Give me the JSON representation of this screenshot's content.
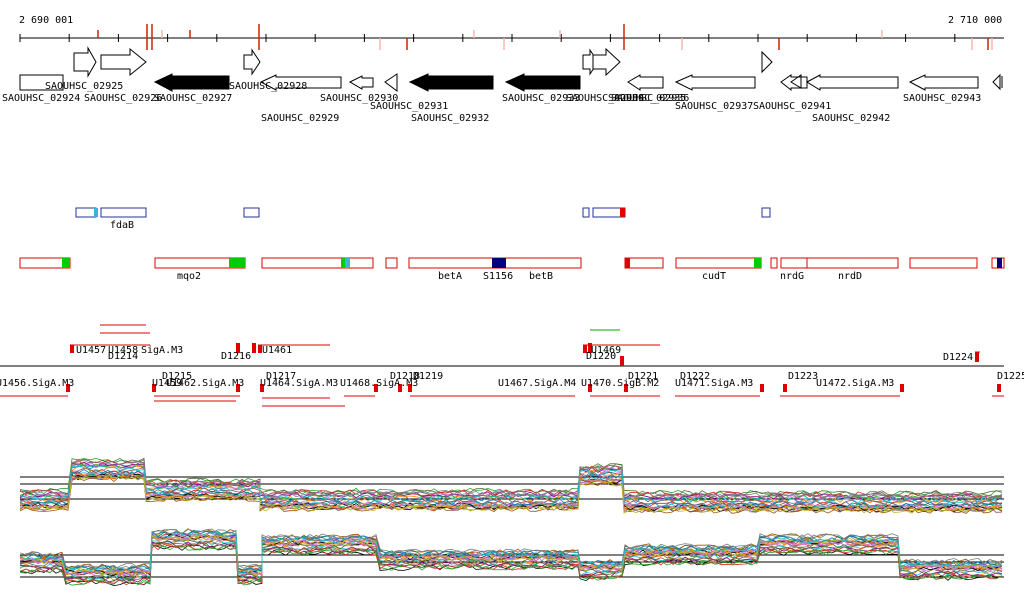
{
  "ruler": {
    "start_label": "2 690 001",
    "end_label": "2 710 000"
  },
  "colors": {
    "feature_red": "#e00000",
    "feature_blue": "#2030a0",
    "feature_navy": "#00007a",
    "accent_green": "#00cc00",
    "accent_cyan": "#40b0e0",
    "gene_filled": "#000000",
    "gene_outline": "#000000",
    "mark_red": "#cc2200",
    "mark_pink": "#ffb0b0"
  },
  "genes": [
    {
      "id": "SAOUHSC_02924",
      "dir": "r",
      "filled": false
    },
    {
      "id": "SAOUHSC_02925",
      "dir": "r",
      "filled": false
    },
    {
      "id": "SAOUHSC_02926",
      "dir": "r",
      "filled": false
    },
    {
      "id": "SAOUHSC_02927",
      "dir": "l",
      "filled": true
    },
    {
      "id": "SAOUHSC_02928",
      "dir": "r",
      "filled": false
    },
    {
      "id": "SAOUHSC_02929",
      "dir": "l",
      "filled": false
    },
    {
      "id": "SAOUHSC_02930",
      "dir": "l",
      "filled": false
    },
    {
      "id": "SAOUHSC_02931",
      "dir": "l",
      "filled": false
    },
    {
      "id": "SAOUHSC_02932",
      "dir": "l",
      "filled": true
    },
    {
      "id": "SAOUHSC_02933",
      "dir": "l",
      "filled": true
    },
    {
      "id": "SAOUHSC_02934",
      "dir": "r",
      "filled": false
    },
    {
      "id": "SAOUHSC_02935",
      "dir": "r",
      "filled": false
    },
    {
      "id": "SAOUHSC_02936",
      "dir": "l",
      "filled": false
    },
    {
      "id": "SAOUHSC_02937",
      "dir": "l",
      "filled": false
    },
    {
      "id": "SAOUHSC_02941",
      "dir": "l",
      "filled": false
    },
    {
      "id": "SAOUHSC_02942",
      "dir": "l",
      "filled": false
    },
    {
      "id": "SAOUHSC_02943",
      "dir": "l",
      "filled": false
    }
  ],
  "blue_track_labels": [
    "fdaB"
  ],
  "red_track_labels": [
    "mqo2",
    "betA",
    "S1156",
    "betB",
    "cudT",
    "nrdG",
    "nrdD"
  ],
  "regulon_labels": [
    "U1457",
    "D1214",
    "U1458",
    "SigA.M3",
    "D1215",
    "D1216",
    "U1461",
    "D1217",
    "D1218",
    "D1219",
    "U1467.SigA.M4",
    "D1220",
    "U1469",
    "U1470.SigB.M2",
    "D1221",
    "D1222",
    "U1471.SigA.M3",
    "D1223",
    "U1472.SigA.M3",
    "D1224",
    "D1225",
    "U1456.SigA.M3",
    "U1459",
    "U1462.SigA.M3",
    "U1464.SigA.M3",
    "U1468.SigA.M3"
  ]
}
